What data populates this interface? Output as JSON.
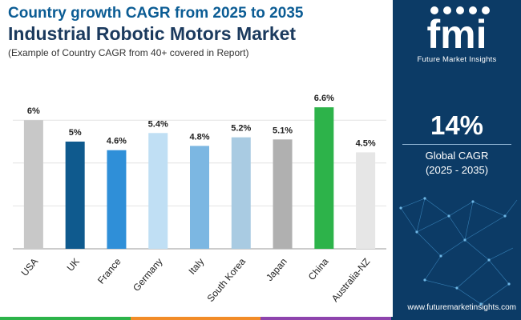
{
  "header": {
    "title_line1": "Country growth CAGR from 2025 to 2035",
    "title_line2": "Industrial Robotic Motors Market",
    "subtitle": "(Example of Country CAGR from 40+ covered in Report)"
  },
  "chart_data": {
    "type": "bar",
    "categories": [
      "USA",
      "UK",
      "France",
      "Germany",
      "Italy",
      "South Korea",
      "Japan",
      "China",
      "Australia-NZ"
    ],
    "values": [
      6,
      5,
      4.6,
      5.4,
      4.8,
      5.2,
      5.1,
      6.6,
      4.5
    ],
    "labels": [
      "6%",
      "5%",
      "4.6%",
      "5.4%",
      "4.8%",
      "5.2%",
      "5.1%",
      "6.6%",
      "4.5%"
    ],
    "colors": [
      "#c8c8c8",
      "#0f5a8e",
      "#2f8fd8",
      "#c0dff4",
      "#7cb7e2",
      "#a9cbe2",
      "#b0b0b0",
      "#2db34a",
      "#e6e6e6"
    ],
    "ylim": [
      0,
      7
    ],
    "grid": true,
    "xlabel": "",
    "ylabel": ""
  },
  "sidebar": {
    "logo_text": "fmi",
    "logo_subtitle": "Future Market Insights",
    "cagr_value": "14%",
    "cagr_label": "Global CAGR",
    "cagr_period": "(2025 - 2035)",
    "website": "www.futuremarketinsights.com"
  },
  "colors": {
    "sidebar_bg": "#0c3b66",
    "title_primary": "#0b5c94",
    "title_secondary": "#1b3a5e",
    "strip": [
      "#2db34a",
      "#f28c28",
      "#8e44ad",
      "#0c3b66"
    ]
  }
}
